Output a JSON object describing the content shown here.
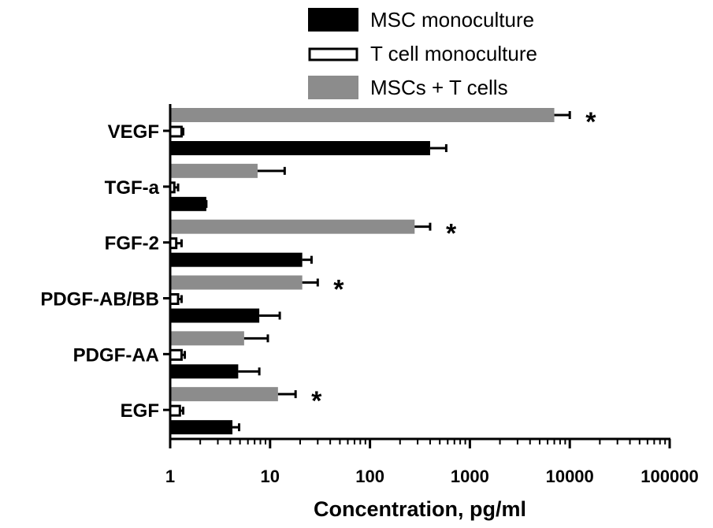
{
  "chart_data": {
    "type": "bar",
    "orientation": "horizontal",
    "x_scale": "log",
    "xlabel": "Concentration, pg/ml",
    "xlim": [
      1,
      100000
    ],
    "x_ticks": [
      "1",
      "10",
      "100",
      "1000",
      "10000",
      "100000"
    ],
    "categories": [
      "VEGF",
      "TGF-a",
      "FGF-2",
      "PDGF-AB/BB",
      "PDGF-AA",
      "EGF"
    ],
    "series": [
      {
        "name": "MSCs + T cells",
        "color": "#8c8c8c",
        "values": [
          7000,
          7.5,
          280,
          21,
          5.5,
          12
        ],
        "errors": [
          10000,
          14,
          400,
          30,
          9.5,
          18
        ]
      },
      {
        "name": "T cell monoculture",
        "color": "#ffffff",
        "values": [
          1.3,
          1.1,
          1.15,
          1.2,
          1.3,
          1.25
        ],
        "errors": [
          1.35,
          1.2,
          1.3,
          1.3,
          1.4,
          1.35
        ]
      },
      {
        "name": "MSC monoculture",
        "color": "#000000",
        "values": [
          400,
          2.3,
          21,
          7.8,
          4.8,
          4.2
        ],
        "errors": [
          580,
          2.3,
          26,
          12.5,
          7.8,
          4.9
        ]
      }
    ],
    "annotations": [
      {
        "category": "VEGF",
        "text": "*"
      },
      {
        "category": "FGF-2",
        "text": "*"
      },
      {
        "category": "PDGF-AB/BB",
        "text": "*"
      },
      {
        "category": "EGF",
        "text": "*"
      }
    ],
    "legend": {
      "position": "top-right",
      "entries": [
        "MSC monoculture",
        "T cell monoculture",
        "MSCs + T cells"
      ]
    }
  }
}
